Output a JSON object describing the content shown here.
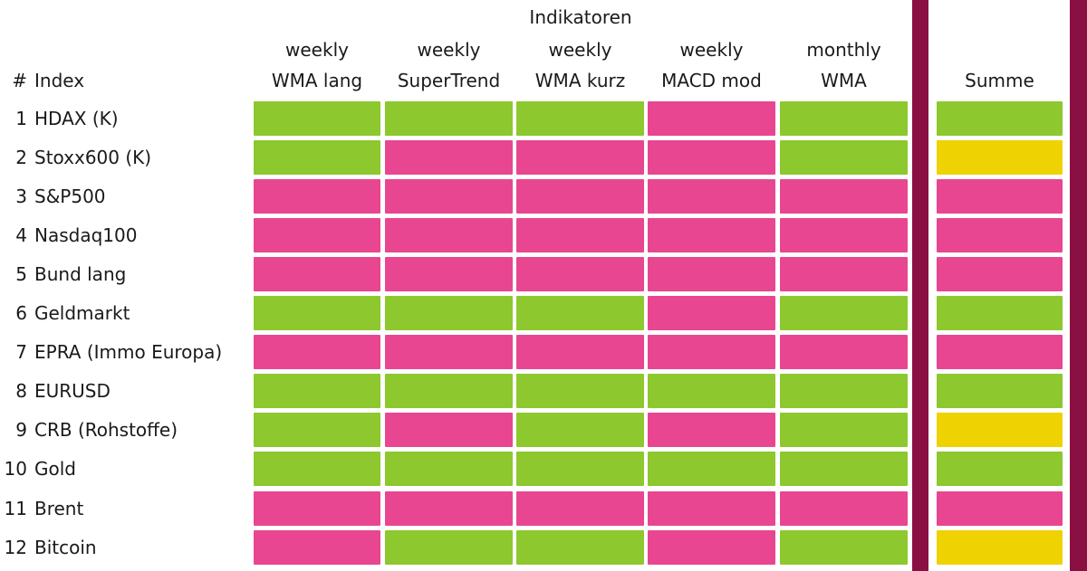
{
  "palette": {
    "green": "#8CC82E",
    "pink": "#E84690",
    "yellow": "#EED202",
    "divider": "#8A1044"
  },
  "header": {
    "title": "Indikatoren",
    "hash_col": "#",
    "index_col": "Index",
    "columns": [
      {
        "line1": "weekly",
        "line2": "WMA lang"
      },
      {
        "line1": "weekly",
        "line2": "SuperTrend"
      },
      {
        "line1": "weekly",
        "line2": "WMA kurz"
      },
      {
        "line1": "weekly",
        "line2": "MACD mod"
      },
      {
        "line1": "monthly",
        "line2": "WMA"
      },
      {
        "line1": "",
        "line2": "Summe"
      }
    ]
  },
  "rows": [
    {
      "num": "1",
      "label": "HDAX (K)",
      "cells": [
        "green",
        "green",
        "green",
        "pink",
        "green"
      ],
      "summe": "green"
    },
    {
      "num": "2",
      "label": "Stoxx600 (K)",
      "cells": [
        "green",
        "pink",
        "pink",
        "pink",
        "green"
      ],
      "summe": "yellow"
    },
    {
      "num": "3",
      "label": "S&P500",
      "cells": [
        "pink",
        "pink",
        "pink",
        "pink",
        "pink"
      ],
      "summe": "pink"
    },
    {
      "num": "4",
      "label": "Nasdaq100",
      "cells": [
        "pink",
        "pink",
        "pink",
        "pink",
        "pink"
      ],
      "summe": "pink"
    },
    {
      "num": "5",
      "label": "Bund lang",
      "cells": [
        "pink",
        "pink",
        "pink",
        "pink",
        "pink"
      ],
      "summe": "pink"
    },
    {
      "num": "6",
      "label": "Geldmarkt",
      "cells": [
        "green",
        "green",
        "green",
        "pink",
        "green"
      ],
      "summe": "green"
    },
    {
      "num": "7",
      "label": "EPRA (Immo Europa)",
      "cells": [
        "pink",
        "pink",
        "pink",
        "pink",
        "pink"
      ],
      "summe": "pink"
    },
    {
      "num": "8",
      "label": "EURUSD",
      "cells": [
        "green",
        "green",
        "green",
        "green",
        "green"
      ],
      "summe": "green"
    },
    {
      "num": "9",
      "label": "CRB (Rohstoffe)",
      "cells": [
        "green",
        "pink",
        "green",
        "pink",
        "green"
      ],
      "summe": "yellow"
    },
    {
      "num": "10",
      "label": "Gold",
      "cells": [
        "green",
        "green",
        "green",
        "green",
        "green"
      ],
      "summe": "green"
    },
    {
      "num": "11",
      "label": "Brent",
      "cells": [
        "pink",
        "pink",
        "pink",
        "pink",
        "pink"
      ],
      "summe": "pink"
    },
    {
      "num": "12",
      "label": "Bitcoin",
      "cells": [
        "pink",
        "green",
        "green",
        "pink",
        "green"
      ],
      "summe": "yellow"
    }
  ],
  "chart_data": {
    "type": "heatmap",
    "title": "Indikatoren",
    "columns": [
      "weekly WMA lang",
      "weekly SuperTrend",
      "weekly WMA kurz",
      "weekly MACD mod",
      "monthly WMA",
      "Summe"
    ],
    "rows": [
      "HDAX (K)",
      "Stoxx600 (K)",
      "S&P500",
      "Nasdaq100",
      "Bund lang",
      "Geldmarkt",
      "EPRA (Immo Europa)",
      "EURUSD",
      "CRB (Rohstoffe)",
      "Gold",
      "Brent",
      "Bitcoin"
    ],
    "values": [
      [
        "green",
        "green",
        "green",
        "pink",
        "green",
        "green"
      ],
      [
        "green",
        "pink",
        "pink",
        "pink",
        "green",
        "yellow"
      ],
      [
        "pink",
        "pink",
        "pink",
        "pink",
        "pink",
        "pink"
      ],
      [
        "pink",
        "pink",
        "pink",
        "pink",
        "pink",
        "pink"
      ],
      [
        "pink",
        "pink",
        "pink",
        "pink",
        "pink",
        "pink"
      ],
      [
        "green",
        "green",
        "green",
        "pink",
        "green",
        "green"
      ],
      [
        "pink",
        "pink",
        "pink",
        "pink",
        "pink",
        "pink"
      ],
      [
        "green",
        "green",
        "green",
        "green",
        "green",
        "green"
      ],
      [
        "green",
        "pink",
        "green",
        "pink",
        "green",
        "yellow"
      ],
      [
        "green",
        "green",
        "green",
        "green",
        "green",
        "green"
      ],
      [
        "pink",
        "pink",
        "pink",
        "pink",
        "pink",
        "pink"
      ],
      [
        "pink",
        "green",
        "green",
        "pink",
        "green",
        "yellow"
      ]
    ],
    "cell_colors": {
      "green": "#8CC82E",
      "pink": "#E84690",
      "yellow": "#EED202"
    },
    "layout": "rows are indices 1-12; first five columns grouped under title 'Indikatoren'; 'Summe' column separated by dark divider bars"
  }
}
